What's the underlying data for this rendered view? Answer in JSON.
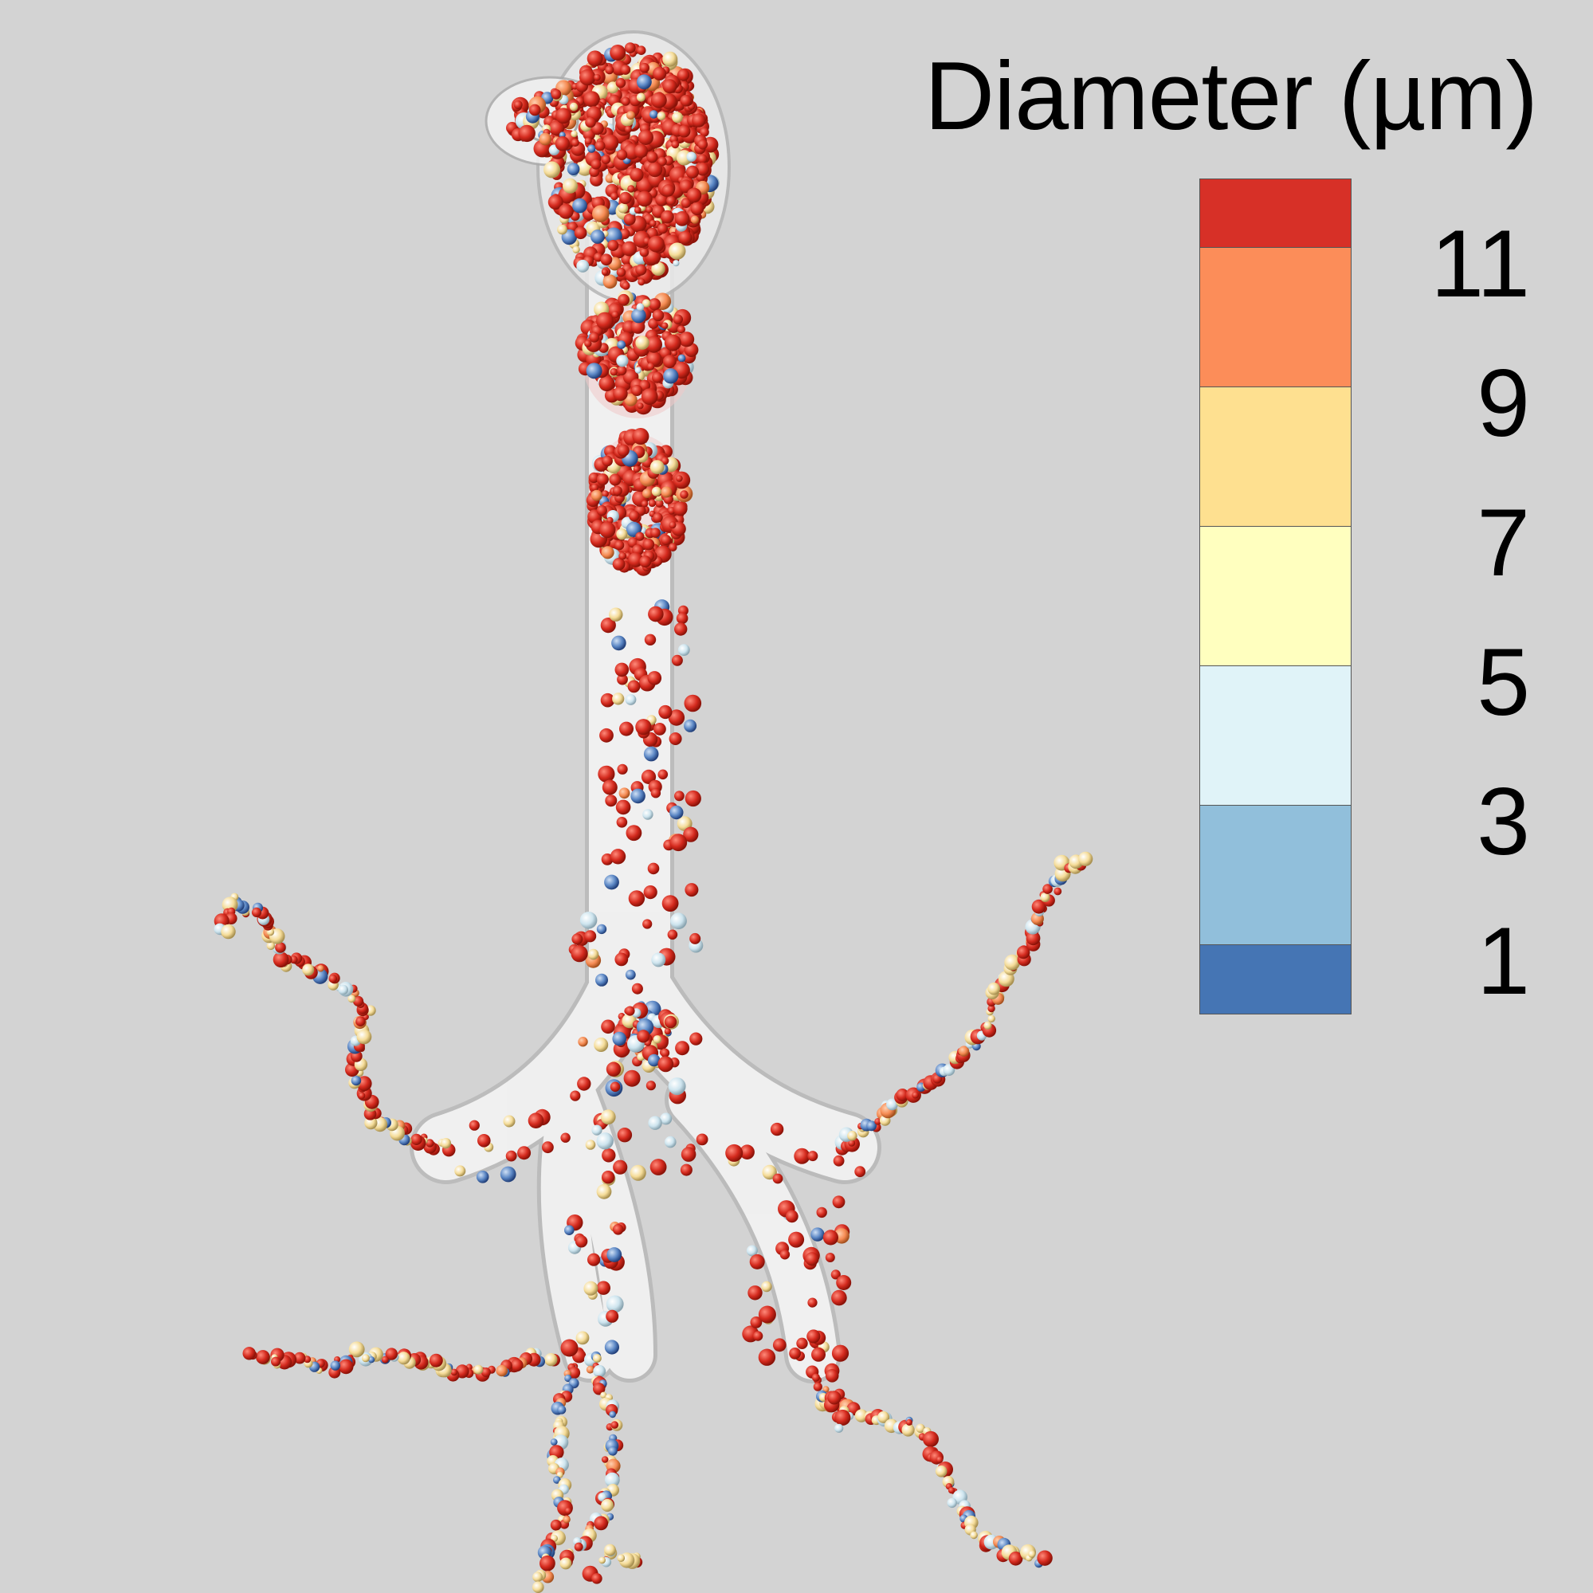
{
  "legend": {
    "title": "Diameter (µm)",
    "ticks": [
      "11",
      "9",
      "7",
      "5",
      "3",
      "1"
    ],
    "colors": [
      "#d73027",
      "#fc8d59",
      "#fee090",
      "#ffffbf",
      "#e0f3f8",
      "#91bfdb",
      "#4575b4"
    ]
  },
  "colors": {
    "background": "#d3d3d3",
    "airway": "#f4f4f4",
    "airway_edge": "#b8b8b8"
  }
}
